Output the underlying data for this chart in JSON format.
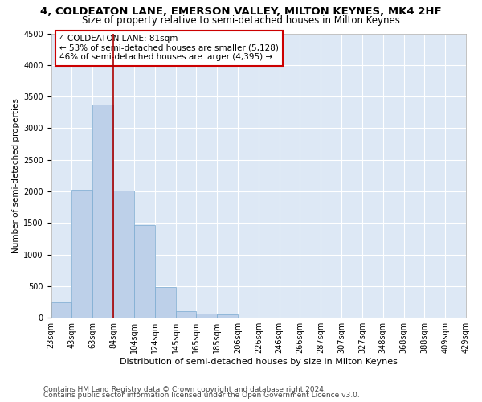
{
  "title1": "4, COLDEATON LANE, EMERSON VALLEY, MILTON KEYNES, MK4 2HF",
  "title2": "Size of property relative to semi-detached houses in Milton Keynes",
  "xlabel": "Distribution of semi-detached houses by size in Milton Keynes",
  "ylabel": "Number of semi-detached properties",
  "footer1": "Contains HM Land Registry data © Crown copyright and database right 2024.",
  "footer2": "Contains public sector information licensed under the Open Government Licence v3.0.",
  "annotation_title": "4 COLDEATON LANE: 81sqm",
  "annotation_line1": "← 53% of semi-detached houses are smaller (5,128)",
  "annotation_line2": "46% of semi-detached houses are larger (4,395) →",
  "bar_values": [
    250,
    2030,
    3370,
    2010,
    1460,
    480,
    100,
    60,
    50,
    0,
    0,
    0,
    0,
    0,
    0,
    0,
    0,
    0,
    0,
    0
  ],
  "categories": [
    "23sqm",
    "43sqm",
    "63sqm",
    "84sqm",
    "104sqm",
    "124sqm",
    "145sqm",
    "165sqm",
    "185sqm",
    "206sqm",
    "226sqm",
    "246sqm",
    "266sqm",
    "287sqm",
    "307sqm",
    "327sqm",
    "348sqm",
    "368sqm",
    "388sqm",
    "409sqm",
    "429sqm"
  ],
  "bar_color": "#bdd0e9",
  "bar_edge_color": "#7aaad0",
  "vline_color": "#aa0000",
  "ylim": [
    0,
    4500
  ],
  "annotation_box_color": "#ffffff",
  "annotation_box_edge": "#cc0000",
  "bg_color": "#dde8f5",
  "grid_color": "#ffffff",
  "title1_fontsize": 9.5,
  "title2_fontsize": 8.5,
  "xlabel_fontsize": 8,
  "ylabel_fontsize": 7.5,
  "tick_fontsize": 7,
  "footer_fontsize": 6.5,
  "annot_fontsize": 7.5
}
